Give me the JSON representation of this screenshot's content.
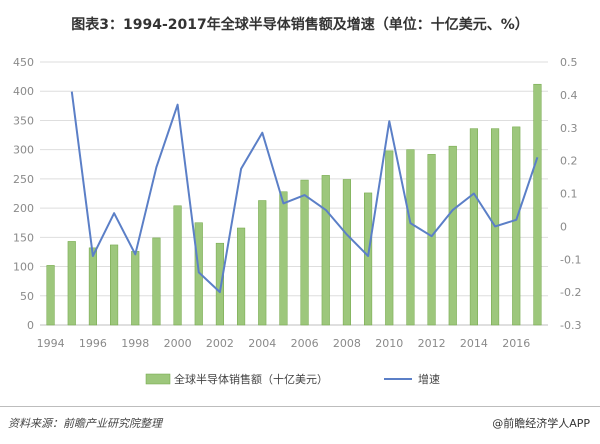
{
  "title": "图表3：1994-2017年全球半导体销售额及增速（单位：十亿美元、%）",
  "source": "资料来源：前瞻产业研究院整理",
  "brand": "@前瞻经济学人APP",
  "colors": {
    "bar": "#9dc77c",
    "bar_edge": "#6fa544",
    "line": "#5b7fc7",
    "grid": "#dedede",
    "axis_text": "#8a8a8a"
  },
  "chart_data": {
    "type": "bar+line",
    "title": "图表3：1994-2017年全球半导体销售额及增速（单位：十亿美元、%）",
    "x": [
      1994,
      1995,
      1996,
      1997,
      1998,
      1999,
      2000,
      2001,
      2002,
      2003,
      2004,
      2005,
      2006,
      2007,
      2008,
      2009,
      2010,
      2011,
      2012,
      2013,
      2014,
      2015,
      2016,
      2017
    ],
    "x_tick_labels": [
      "1994",
      "1996",
      "1998",
      "2000",
      "2002",
      "2004",
      "2006",
      "2008",
      "2010",
      "2012",
      "2014",
      "2016"
    ],
    "y_left": {
      "min": 0,
      "max": 450,
      "ticks": [
        0,
        50,
        100,
        150,
        200,
        250,
        300,
        350,
        400,
        450
      ],
      "tick_labels": [
        "0",
        "50",
        "100",
        "150",
        "200",
        "250",
        "300",
        "350",
        "400",
        "450"
      ]
    },
    "y_right": {
      "min": -0.3,
      "max": 0.5,
      "ticks": [
        -0.3,
        -0.2,
        -0.1,
        0,
        0.1,
        0.2,
        0.3,
        0.4,
        0.5
      ],
      "tick_labels": [
        "-0.3",
        "-0.2",
        "-0.1",
        "0",
        "0.1",
        "0.2",
        "0.3",
        "0.4",
        "0.5"
      ]
    },
    "grid": true,
    "legend_position": "bottom",
    "series": [
      {
        "name": "全球半导体销售额（十亿美元）",
        "type": "bar",
        "axis": "left",
        "values": [
          102,
          143,
          132,
          137,
          126,
          149,
          204,
          175,
          140,
          166,
          213,
          228,
          248,
          256,
          249,
          226,
          298,
          300,
          292,
          306,
          336,
          336,
          339,
          412
        ]
      },
      {
        "name": "增速",
        "type": "line",
        "axis": "right",
        "values": [
          null,
          0.41,
          -0.09,
          0.04,
          -0.085,
          0.18,
          0.37,
          -0.14,
          -0.2,
          0.175,
          0.285,
          0.07,
          0.095,
          0.05,
          -0.025,
          -0.09,
          0.32,
          0.01,
          -0.03,
          0.05,
          0.1,
          0,
          0.02,
          0.21
        ]
      }
    ]
  }
}
